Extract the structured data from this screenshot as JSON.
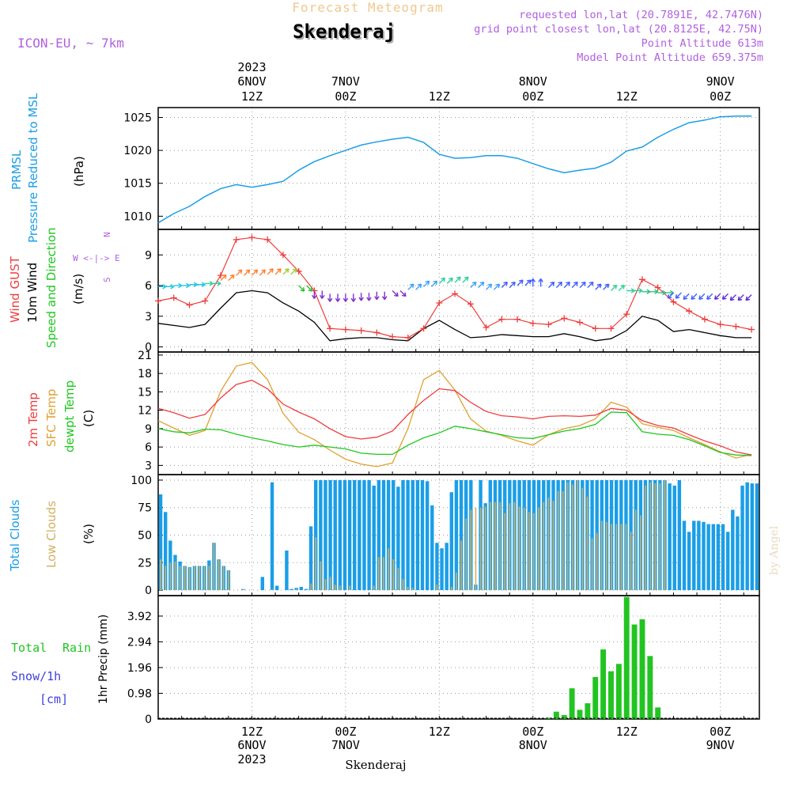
{
  "header": {
    "subtitle": "Forecast Meteogram",
    "location": "Skenderaj",
    "model": "ICON-EU, ~ 7km",
    "requested": "requested lon,lat (20.7891E, 42.7476N)",
    "gridpoint": "grid point closest lon,lat (20.8125E, 42.75N)",
    "altitude": "Point Altitude 613m",
    "model_altitude": "Model Point Altitude 659.375m",
    "footer_location": "Skenderaj",
    "credit": "by Angel"
  },
  "time_axis": {
    "hours_start": 0,
    "hours_end": 77,
    "ticks": [
      {
        "hour": 12,
        "top1": "2023",
        "top2": "6NOV",
        "top3": "12Z",
        "bot1": "12Z",
        "bot2": "6NOV",
        "bot3": "2023"
      },
      {
        "hour": 24,
        "top1": "",
        "top2": "7NOV",
        "top3": "00Z",
        "bot1": "00Z",
        "bot2": "7NOV",
        "bot3": ""
      },
      {
        "hour": 36,
        "top1": "",
        "top2": "",
        "top3": "12Z",
        "bot1": "12Z",
        "bot2": "",
        "bot3": ""
      },
      {
        "hour": 48,
        "top1": "",
        "top2": "8NOV",
        "top3": "00Z",
        "bot1": "00Z",
        "bot2": "8NOV",
        "bot3": ""
      },
      {
        "hour": 60,
        "top1": "",
        "top2": "",
        "top3": "12Z",
        "bot1": "12Z",
        "bot2": "",
        "bot3": ""
      },
      {
        "hour": 72,
        "top1": "",
        "top2": "9NOV",
        "top3": "00Z",
        "bot1": "00Z",
        "bot2": "9NOV",
        "bot3": ""
      }
    ]
  },
  "colors": {
    "pressure": "#1a9ee8",
    "gust": "#f03c3c",
    "wind": "#000000",
    "t2m": "#f03c3c",
    "sfc": "#e0a030",
    "dew": "#1ec81e",
    "total_cloud": "#1a9ee8",
    "low_cloud": "#d4b060",
    "rain": "#22c422",
    "snow": "#4040e0",
    "purple": "#b060e0"
  },
  "panels": {
    "pressure": {
      "label1": "PRMSL",
      "label2": "Pressure Reduced to MSL",
      "unit": "(hPa)"
    },
    "wind": {
      "label1": "Wind GUST",
      "label2": "10m Wind",
      "label3": "Speed and Direction",
      "unit": "(m/s)",
      "compass_n": "N",
      "compass_s": "S",
      "compass_we": "W <-|-> E"
    },
    "temp": {
      "label1": "2m Temp",
      "label2": "SFC Temp",
      "label3": "dewpt Temp",
      "unit": "(C)"
    },
    "clouds": {
      "label1": "Total Clouds",
      "label2": "Low Clouds",
      "unit": "(%)"
    },
    "precip": {
      "label1": "Total",
      "label1b": "Rain",
      "label2": "Snow/1h",
      "label3": "[cm]",
      "unit": "1hr Precip (mm)"
    }
  },
  "chart_data": [
    {
      "type": "line",
      "title": "PRMSL Pressure Reduced to MSL",
      "ylabel": "(hPa)",
      "ylim": [
        1008,
        1026.5
      ],
      "yticks": [
        1010,
        1015,
        1020,
        1025
      ],
      "x": [
        0,
        2,
        4,
        6,
        8,
        10,
        12,
        14,
        16,
        18,
        20,
        22,
        24,
        26,
        28,
        30,
        32,
        34,
        36,
        38,
        40,
        42,
        44,
        46,
        48,
        50,
        52,
        54,
        56,
        58,
        60,
        62,
        64,
        66,
        68,
        70,
        72,
        74,
        76
      ],
      "series": [
        {
          "name": "PRMSL",
          "values": [
            1009.0,
            1010.4,
            1011.5,
            1013.0,
            1014.2,
            1014.8,
            1014.4,
            1014.8,
            1015.3,
            1017.0,
            1018.3,
            1019.2,
            1020.0,
            1020.8,
            1021.3,
            1021.7,
            1022.0,
            1021.2,
            1019.4,
            1018.8,
            1018.9,
            1019.2,
            1019.2,
            1018.8,
            1018.0,
            1017.2,
            1016.6,
            1017.0,
            1017.3,
            1018.2,
            1019.9,
            1020.5,
            1022.0,
            1023.2,
            1024.2,
            1024.6,
            1025.1,
            1025.2,
            1025.2
          ]
        }
      ]
    },
    {
      "type": "line",
      "title": "Wind GUST / 10m Wind Speed and Direction",
      "ylabel": "(m/s)",
      "ylim": [
        -0.5,
        11.5
      ],
      "yticks": [
        0,
        3,
        6,
        9
      ],
      "x": [
        0,
        2,
        4,
        6,
        8,
        10,
        12,
        14,
        16,
        18,
        20,
        22,
        24,
        26,
        28,
        30,
        32,
        34,
        36,
        38,
        40,
        42,
        44,
        46,
        48,
        50,
        52,
        54,
        56,
        58,
        60,
        62,
        64,
        66,
        68,
        70,
        72,
        74,
        76
      ],
      "series": [
        {
          "name": "Wind GUST",
          "values": [
            4.5,
            4.8,
            4.1,
            4.5,
            7.0,
            10.5,
            10.7,
            10.5,
            9.0,
            7.4,
            5.5,
            1.8,
            1.7,
            1.6,
            1.4,
            1.0,
            0.9,
            1.8,
            4.3,
            5.2,
            4.2,
            1.9,
            2.7,
            2.7,
            2.3,
            2.2,
            2.8,
            2.4,
            1.8,
            1.8,
            3.2,
            6.6,
            5.8,
            4.4,
            3.5,
            2.7,
            2.2,
            2.0,
            1.7
          ]
        },
        {
          "name": "10m Wind",
          "values": [
            2.3,
            2.1,
            1.9,
            2.2,
            3.8,
            5.3,
            5.5,
            5.3,
            4.3,
            3.5,
            2.4,
            0.6,
            0.8,
            0.9,
            0.9,
            0.7,
            0.6,
            1.8,
            2.6,
            1.7,
            0.9,
            1.0,
            1.2,
            1.1,
            1.0,
            1.0,
            1.3,
            1.0,
            0.6,
            0.8,
            1.6,
            3.0,
            2.6,
            1.5,
            1.7,
            1.4,
            1.1,
            0.9,
            0.9
          ]
        }
      ],
      "arrow_level": [
        5.9,
        6.0,
        6.1,
        6.2,
        6.5,
        7.0,
        7.0,
        7.1,
        7.1,
        6.0,
        5.5,
        5.2,
        5.2,
        5.3,
        5.4,
        5.5,
        5.6,
        5.9,
        6.2,
        6.3,
        5.8,
        5.6,
        5.8,
        6.0,
        5.9,
        5.8,
        5.8,
        5.8,
        5.6,
        5.5,
        5.5,
        5.4,
        5.3,
        5.3,
        5.2,
        5.2,
        5.2,
        5.1,
        5.1
      ],
      "arrow_dir": [
        "E",
        "E",
        "E",
        "E",
        "NE",
        "NE",
        "NE",
        "NE",
        "NE",
        "SE",
        "S",
        "S",
        "S",
        "S",
        "S",
        "SE",
        "NE",
        "NE",
        "NE",
        "NE",
        "NE",
        "NE",
        "NE",
        "NE",
        "N",
        "NE",
        "NE",
        "NE",
        "NE",
        "NE",
        "E",
        "E",
        "E",
        "SW",
        "SW",
        "SW",
        "SW",
        "SW",
        "SW"
      ],
      "arrow_color": [
        "#1ec8e8",
        "#1ec8e8",
        "#1ec8e8",
        "#30d0a0",
        "#ff8030",
        "#ff8030",
        "#ff8030",
        "#ff8030",
        "#a0d030",
        "#30c030",
        "#8030d0",
        "#8030d0",
        "#8030d0",
        "#8030d0",
        "#8030d0",
        "#8030d0",
        "#40a0ff",
        "#40a0ff",
        "#30d0a0",
        "#30d0a0",
        "#40a0ff",
        "#40a0ff",
        "#4060ff",
        "#4060ff",
        "#4060ff",
        "#4060ff",
        "#4060ff",
        "#4060ff",
        "#4060ff",
        "#30d0a0",
        "#30d0a0",
        "#30c080",
        "#30c080",
        "#4060ff",
        "#4060ff",
        "#4060ff",
        "#6030d0",
        "#6030d0",
        "#6030d0"
      ]
    },
    {
      "type": "line",
      "title": "2m Temp / SFC Temp / dewpt Temp",
      "ylabel": "(C)",
      "ylim": [
        1.5,
        21.5
      ],
      "yticks": [
        3,
        6,
        9,
        12,
        15,
        18,
        21
      ],
      "x": [
        0,
        2,
        4,
        6,
        8,
        10,
        12,
        14,
        16,
        18,
        20,
        22,
        24,
        26,
        28,
        30,
        32,
        34,
        36,
        38,
        40,
        42,
        44,
        46,
        48,
        50,
        52,
        54,
        56,
        58,
        60,
        62,
        64,
        66,
        68,
        70,
        72,
        74,
        76
      ],
      "series": [
        {
          "name": "2m Temp",
          "values": [
            12.3,
            11.6,
            10.7,
            11.3,
            14.0,
            16.2,
            16.9,
            15.5,
            13.0,
            11.7,
            10.6,
            9.0,
            7.7,
            7.3,
            7.6,
            8.6,
            11.3,
            13.6,
            15.5,
            15.2,
            13.3,
            11.8,
            11.1,
            10.9,
            10.6,
            11.0,
            11.1,
            11.0,
            11.2,
            12.3,
            12.0,
            10.3,
            9.5,
            9.1,
            8.0,
            7.0,
            6.2,
            5.2,
            4.7
          ]
        },
        {
          "name": "SFC Temp",
          "values": [
            10.3,
            9.1,
            7.9,
            8.7,
            15.1,
            19.2,
            19.8,
            17.0,
            11.5,
            8.4,
            7.2,
            5.5,
            4.0,
            3.2,
            2.8,
            3.4,
            9.0,
            17.0,
            18.5,
            15.3,
            10.6,
            8.6,
            7.9,
            7.0,
            6.3,
            8.0,
            9.0,
            9.5,
            10.6,
            13.3,
            12.5,
            9.8,
            9.2,
            8.7,
            7.5,
            6.4,
            5.2,
            4.2,
            4.8
          ]
        },
        {
          "name": "dewpt Temp",
          "values": [
            9.0,
            8.5,
            8.3,
            8.9,
            8.8,
            8.1,
            7.5,
            7.0,
            6.4,
            6.0,
            6.3,
            6.0,
            5.7,
            5.0,
            4.8,
            4.8,
            6.3,
            7.5,
            8.3,
            9.4,
            9.0,
            8.5,
            8.0,
            7.5,
            7.4,
            8.0,
            8.6,
            9.0,
            9.7,
            11.7,
            11.6,
            8.5,
            8.1,
            7.9,
            7.2,
            6.2,
            5.1,
            4.7,
            4.6
          ]
        }
      ]
    },
    {
      "type": "bar",
      "title": "Total Clouds / Low Clouds",
      "ylabel": "(%)",
      "ylim": [
        -5,
        105
      ],
      "yticks": [
        0,
        25,
        50,
        75,
        100
      ],
      "series": [
        {
          "name": "Total Clouds",
          "values": [
            87,
            71,
            45,
            32,
            26,
            22,
            21,
            22,
            22,
            22,
            27,
            43,
            28,
            22,
            18,
            0,
            0,
            1,
            0,
            0,
            0,
            12,
            0,
            98,
            4,
            0,
            36,
            1,
            2,
            3,
            1,
            58,
            100,
            100,
            100,
            100,
            100,
            100,
            100,
            100,
            100,
            100,
            100,
            100,
            95,
            100,
            100,
            100,
            100,
            94,
            100,
            100,
            100,
            100,
            100,
            99,
            77,
            43,
            38,
            43,
            89,
            100,
            100,
            100,
            100,
            5,
            100,
            79,
            100,
            100,
            100,
            100,
            100,
            100,
            100,
            100,
            100,
            100,
            100,
            100,
            100,
            100,
            100,
            100,
            100,
            100,
            100,
            100,
            100,
            100,
            100,
            100,
            100,
            100,
            100,
            100,
            100,
            100,
            100,
            100,
            100,
            100,
            100,
            100,
            100,
            97,
            95,
            100,
            63,
            53,
            63,
            63,
            62,
            60,
            60,
            60,
            60,
            53,
            73,
            67,
            95,
            98,
            97,
            97
          ]
        },
        {
          "name": "Low Clouds",
          "values": [
            28,
            22,
            25,
            26,
            22,
            22,
            21,
            22,
            22,
            22,
            22,
            43,
            28,
            22,
            18,
            0,
            0,
            1,
            0,
            0,
            0,
            0,
            0,
            1,
            0,
            0,
            0,
            0,
            1,
            0,
            0,
            6,
            48,
            26,
            10,
            12,
            5,
            4,
            0,
            4,
            0,
            0,
            0,
            0,
            4,
            30,
            30,
            38,
            28,
            20,
            10,
            3,
            2,
            0,
            0,
            0,
            0,
            5,
            0,
            0,
            3,
            16,
            45,
            65,
            73,
            75,
            75,
            76,
            80,
            80,
            80,
            70,
            79,
            80,
            76,
            75,
            71,
            70,
            75,
            80,
            84,
            81,
            90,
            90,
            98,
            96,
            100,
            93,
            85,
            47,
            52,
            63,
            62,
            60,
            60,
            60,
            60,
            53,
            73,
            68,
            95,
            98,
            97,
            97,
            100,
            0,
            0,
            0,
            0,
            0,
            0,
            0,
            0,
            0,
            0,
            0,
            0,
            0,
            0,
            0,
            0,
            0,
            0,
            0
          ]
        }
      ]
    },
    {
      "type": "bar",
      "title": "1hr Precip",
      "ylabel": "1hr Precip (mm)",
      "ylim": [
        0,
        4.7
      ],
      "yticks": [
        0,
        0.98,
        1.96,
        2.94,
        3.92
      ],
      "yticklabels": [
        "0",
        "0.98",
        "1.96",
        "2.94",
        "3.92"
      ],
      "series": [
        {
          "name": "Total Rain",
          "hours": [
            50,
            51,
            52,
            53,
            54,
            55,
            56,
            57,
            58,
            59,
            60,
            61,
            62,
            63,
            64,
            65
          ],
          "values": [
            0.05,
            0.28,
            0.15,
            1.17,
            0.35,
            0.6,
            1.6,
            2.65,
            1.82,
            2.1,
            4.65,
            3.6,
            3.8,
            2.4,
            0.44,
            0.0
          ]
        }
      ]
    }
  ]
}
